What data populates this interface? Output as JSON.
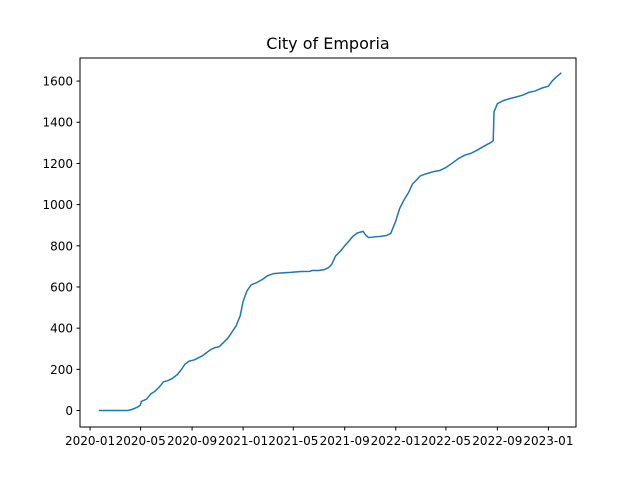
{
  "chart_data": {
    "type": "line",
    "title": "City of Emporia",
    "xlabel": "",
    "ylabel": "",
    "x_axis_type": "date",
    "xlim": [
      "2019-12-08",
      "2023-03-08"
    ],
    "ylim": [
      -80,
      1712
    ],
    "grid": false,
    "line_color": "#1f77b4",
    "x_ticks": [
      {
        "date": "2020-01-01",
        "label": "2020-01"
      },
      {
        "date": "2020-05-01",
        "label": "2020-05"
      },
      {
        "date": "2020-09-01",
        "label": "2020-09"
      },
      {
        "date": "2021-01-01",
        "label": "2021-01"
      },
      {
        "date": "2021-05-01",
        "label": "2021-05"
      },
      {
        "date": "2021-09-01",
        "label": "2021-09"
      },
      {
        "date": "2022-01-01",
        "label": "2022-01"
      },
      {
        "date": "2022-05-01",
        "label": "2022-05"
      },
      {
        "date": "2022-09-01",
        "label": "2022-09"
      },
      {
        "date": "2023-01-01",
        "label": "2023-01"
      }
    ],
    "y_ticks": [
      {
        "value": 0,
        "label": "0"
      },
      {
        "value": 200,
        "label": "200"
      },
      {
        "value": 400,
        "label": "400"
      },
      {
        "value": 600,
        "label": "600"
      },
      {
        "value": 800,
        "label": "800"
      },
      {
        "value": 1000,
        "label": "1000"
      },
      {
        "value": 1200,
        "label": "1200"
      },
      {
        "value": 1400,
        "label": "1400"
      },
      {
        "value": 1600,
        "label": "1600"
      }
    ],
    "series": [
      {
        "points": [
          [
            "2020-01-22",
            0
          ],
          [
            "2020-02-15",
            0
          ],
          [
            "2020-03-10",
            0
          ],
          [
            "2020-04-01",
            0
          ],
          [
            "2020-04-10",
            5
          ],
          [
            "2020-04-22",
            15
          ],
          [
            "2020-04-30",
            25
          ],
          [
            "2020-05-03",
            45
          ],
          [
            "2020-05-15",
            55
          ],
          [
            "2020-05-25",
            80
          ],
          [
            "2020-06-05",
            95
          ],
          [
            "2020-06-15",
            115
          ],
          [
            "2020-06-25",
            140
          ],
          [
            "2020-07-05",
            145
          ],
          [
            "2020-07-15",
            155
          ],
          [
            "2020-07-28",
            175
          ],
          [
            "2020-08-05",
            195
          ],
          [
            "2020-08-15",
            225
          ],
          [
            "2020-08-25",
            240
          ],
          [
            "2020-09-05",
            245
          ],
          [
            "2020-09-15",
            255
          ],
          [
            "2020-09-25",
            265
          ],
          [
            "2020-10-05",
            280
          ],
          [
            "2020-10-15",
            295
          ],
          [
            "2020-10-25",
            305
          ],
          [
            "2020-11-05",
            310
          ],
          [
            "2020-11-15",
            330
          ],
          [
            "2020-11-25",
            350
          ],
          [
            "2020-12-05",
            380
          ],
          [
            "2020-12-15",
            410
          ],
          [
            "2020-12-25",
            460
          ],
          [
            "2021-01-01",
            530
          ],
          [
            "2021-01-10",
            580
          ],
          [
            "2021-01-20",
            610
          ],
          [
            "2021-02-01",
            620
          ],
          [
            "2021-02-15",
            635
          ],
          [
            "2021-03-01",
            655
          ],
          [
            "2021-03-15",
            665
          ],
          [
            "2021-04-01",
            668
          ],
          [
            "2021-04-20",
            670
          ],
          [
            "2021-05-01",
            672
          ],
          [
            "2021-05-20",
            675
          ],
          [
            "2021-06-10",
            676
          ],
          [
            "2021-06-15",
            680
          ],
          [
            "2021-07-01",
            680
          ],
          [
            "2021-07-15",
            685
          ],
          [
            "2021-07-25",
            695
          ],
          [
            "2021-08-01",
            710
          ],
          [
            "2021-08-10",
            750
          ],
          [
            "2021-08-20",
            770
          ],
          [
            "2021-09-01",
            800
          ],
          [
            "2021-09-10",
            820
          ],
          [
            "2021-09-20",
            845
          ],
          [
            "2021-10-01",
            862
          ],
          [
            "2021-10-15",
            870
          ],
          [
            "2021-10-22",
            850
          ],
          [
            "2021-10-28",
            840
          ],
          [
            "2021-11-10",
            843
          ],
          [
            "2021-11-25",
            846
          ],
          [
            "2021-12-10",
            850
          ],
          [
            "2021-12-20",
            860
          ],
          [
            "2022-01-01",
            920
          ],
          [
            "2022-01-10",
            980
          ],
          [
            "2022-01-20",
            1020
          ],
          [
            "2022-02-01",
            1060
          ],
          [
            "2022-02-10",
            1100
          ],
          [
            "2022-02-20",
            1120
          ],
          [
            "2022-03-01",
            1140
          ],
          [
            "2022-03-15",
            1150
          ],
          [
            "2022-04-01",
            1160
          ],
          [
            "2022-04-15",
            1165
          ],
          [
            "2022-05-01",
            1180
          ],
          [
            "2022-05-15",
            1200
          ],
          [
            "2022-06-01",
            1225
          ],
          [
            "2022-06-15",
            1240
          ],
          [
            "2022-07-01",
            1250
          ],
          [
            "2022-07-15",
            1265
          ],
          [
            "2022-08-01",
            1285
          ],
          [
            "2022-08-15",
            1300
          ],
          [
            "2022-08-22",
            1310
          ],
          [
            "2022-08-24",
            1450
          ],
          [
            "2022-09-01",
            1490
          ],
          [
            "2022-09-15",
            1505
          ],
          [
            "2022-10-01",
            1515
          ],
          [
            "2022-10-15",
            1522
          ],
          [
            "2022-11-01",
            1532
          ],
          [
            "2022-11-15",
            1545
          ],
          [
            "2022-12-01",
            1552
          ],
          [
            "2022-12-15",
            1565
          ],
          [
            "2023-01-01",
            1575
          ],
          [
            "2023-01-10",
            1600
          ],
          [
            "2023-01-20",
            1620
          ],
          [
            "2023-02-01",
            1640
          ]
        ]
      }
    ]
  }
}
